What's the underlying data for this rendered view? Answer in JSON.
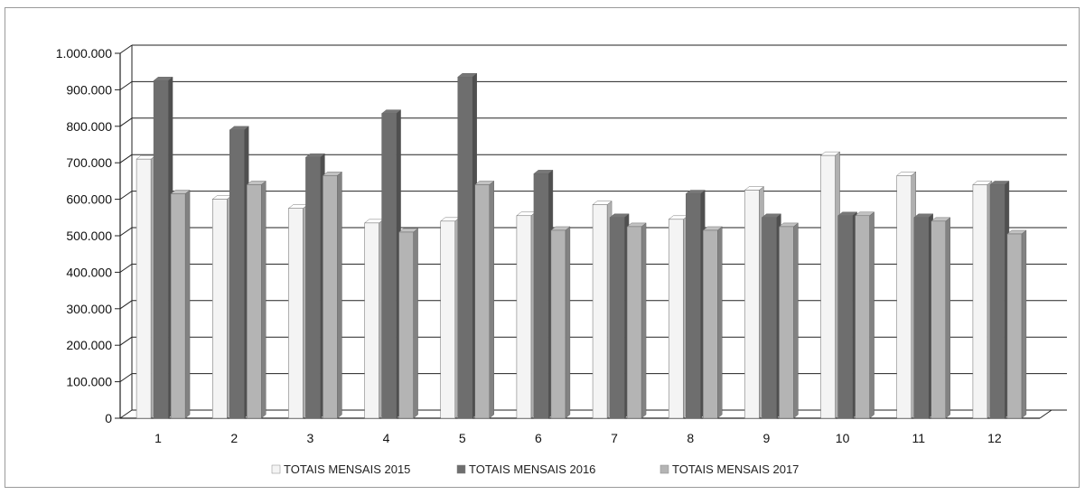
{
  "chart_data": {
    "type": "bar",
    "categories": [
      "1",
      "2",
      "3",
      "4",
      "5",
      "6",
      "7",
      "8",
      "9",
      "10",
      "11",
      "12"
    ],
    "series": [
      {
        "name": "TOTAIS MENSAIS 2015",
        "color": "#f4f4f4",
        "values": [
          710000,
          600000,
          575000,
          535000,
          540000,
          555000,
          585000,
          545000,
          625000,
          720000,
          665000,
          640000
        ]
      },
      {
        "name": "TOTAIS MENSAIS 2016",
        "color": "#6e6e6e",
        "values": [
          925000,
          790000,
          715000,
          835000,
          935000,
          670000,
          550000,
          615000,
          550000,
          555000,
          550000,
          640000
        ]
      },
      {
        "name": "TOTAIS MENSAIS 2017",
        "color": "#b4b4b4",
        "values": [
          615000,
          640000,
          665000,
          510000,
          640000,
          515000,
          525000,
          515000,
          525000,
          555000,
          540000,
          505000
        ]
      }
    ],
    "y_ticks": [
      "0",
      "100.000",
      "200.000",
      "300.000",
      "400.000",
      "500.000",
      "600.000",
      "700.000",
      "800.000",
      "900.000",
      "1.000.000"
    ],
    "ylim": [
      0,
      1000000
    ],
    "grid": true,
    "legend": "bottom",
    "title": "",
    "xlabel": "",
    "ylabel": ""
  }
}
